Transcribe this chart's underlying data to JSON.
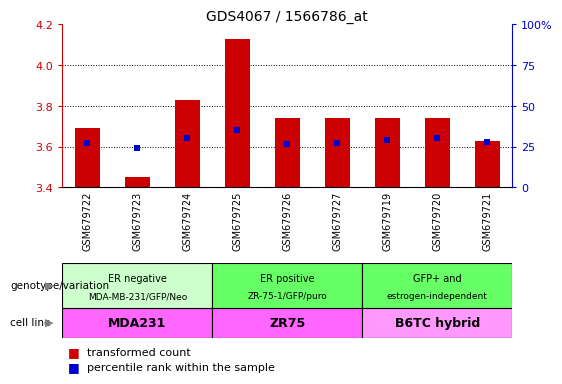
{
  "title": "GDS4067 / 1566786_at",
  "samples": [
    "GSM679722",
    "GSM679723",
    "GSM679724",
    "GSM679725",
    "GSM679726",
    "GSM679727",
    "GSM679719",
    "GSM679720",
    "GSM679721"
  ],
  "red_values": [
    3.69,
    3.45,
    3.83,
    4.13,
    3.74,
    3.74,
    3.74,
    3.74,
    3.63
  ],
  "blue_values": [
    3.62,
    3.595,
    3.645,
    3.68,
    3.615,
    3.62,
    3.635,
    3.645,
    3.625
  ],
  "ylim_left": [
    3.4,
    4.2
  ],
  "ylim_right": [
    0,
    100
  ],
  "yticks_left": [
    3.4,
    3.6,
    3.8,
    4.0,
    4.2
  ],
  "yticks_right": [
    0,
    25,
    50,
    75,
    100
  ],
  "ytick_labels_right": [
    "0",
    "25",
    "50",
    "75",
    "100%"
  ],
  "red_color": "#cc0000",
  "blue_color": "#0000cc",
  "bar_bottom": 3.4,
  "bar_width": 0.5,
  "groups": [
    {
      "label": "ER negative\nMDA-MB-231/GFP/Neo",
      "color": "#ccffcc",
      "span": [
        0,
        3
      ]
    },
    {
      "label": "ER positive\nZR-75-1/GFP/puro",
      "color": "#66ff66",
      "span": [
        3,
        6
      ]
    },
    {
      "label": "GFP+ and\nestrogen-independent",
      "color": "#66ff66",
      "span": [
        6,
        9
      ]
    }
  ],
  "cell_lines": [
    {
      "label": "MDA231",
      "color": "#ff66ff",
      "span": [
        0,
        3
      ]
    },
    {
      "label": "ZR75",
      "color": "#ff66ff",
      "span": [
        3,
        6
      ]
    },
    {
      "label": "B6TC hybrid",
      "color": "#ff99ff",
      "span": [
        6,
        9
      ]
    }
  ],
  "genotype_label": "genotype/variation",
  "cell_line_label": "cell line",
  "legend_red": "transformed count",
  "legend_blue": "percentile rank within the sample",
  "gray_bg": "#c8c8c8",
  "grid_lines": [
    3.6,
    3.8,
    4.0
  ]
}
